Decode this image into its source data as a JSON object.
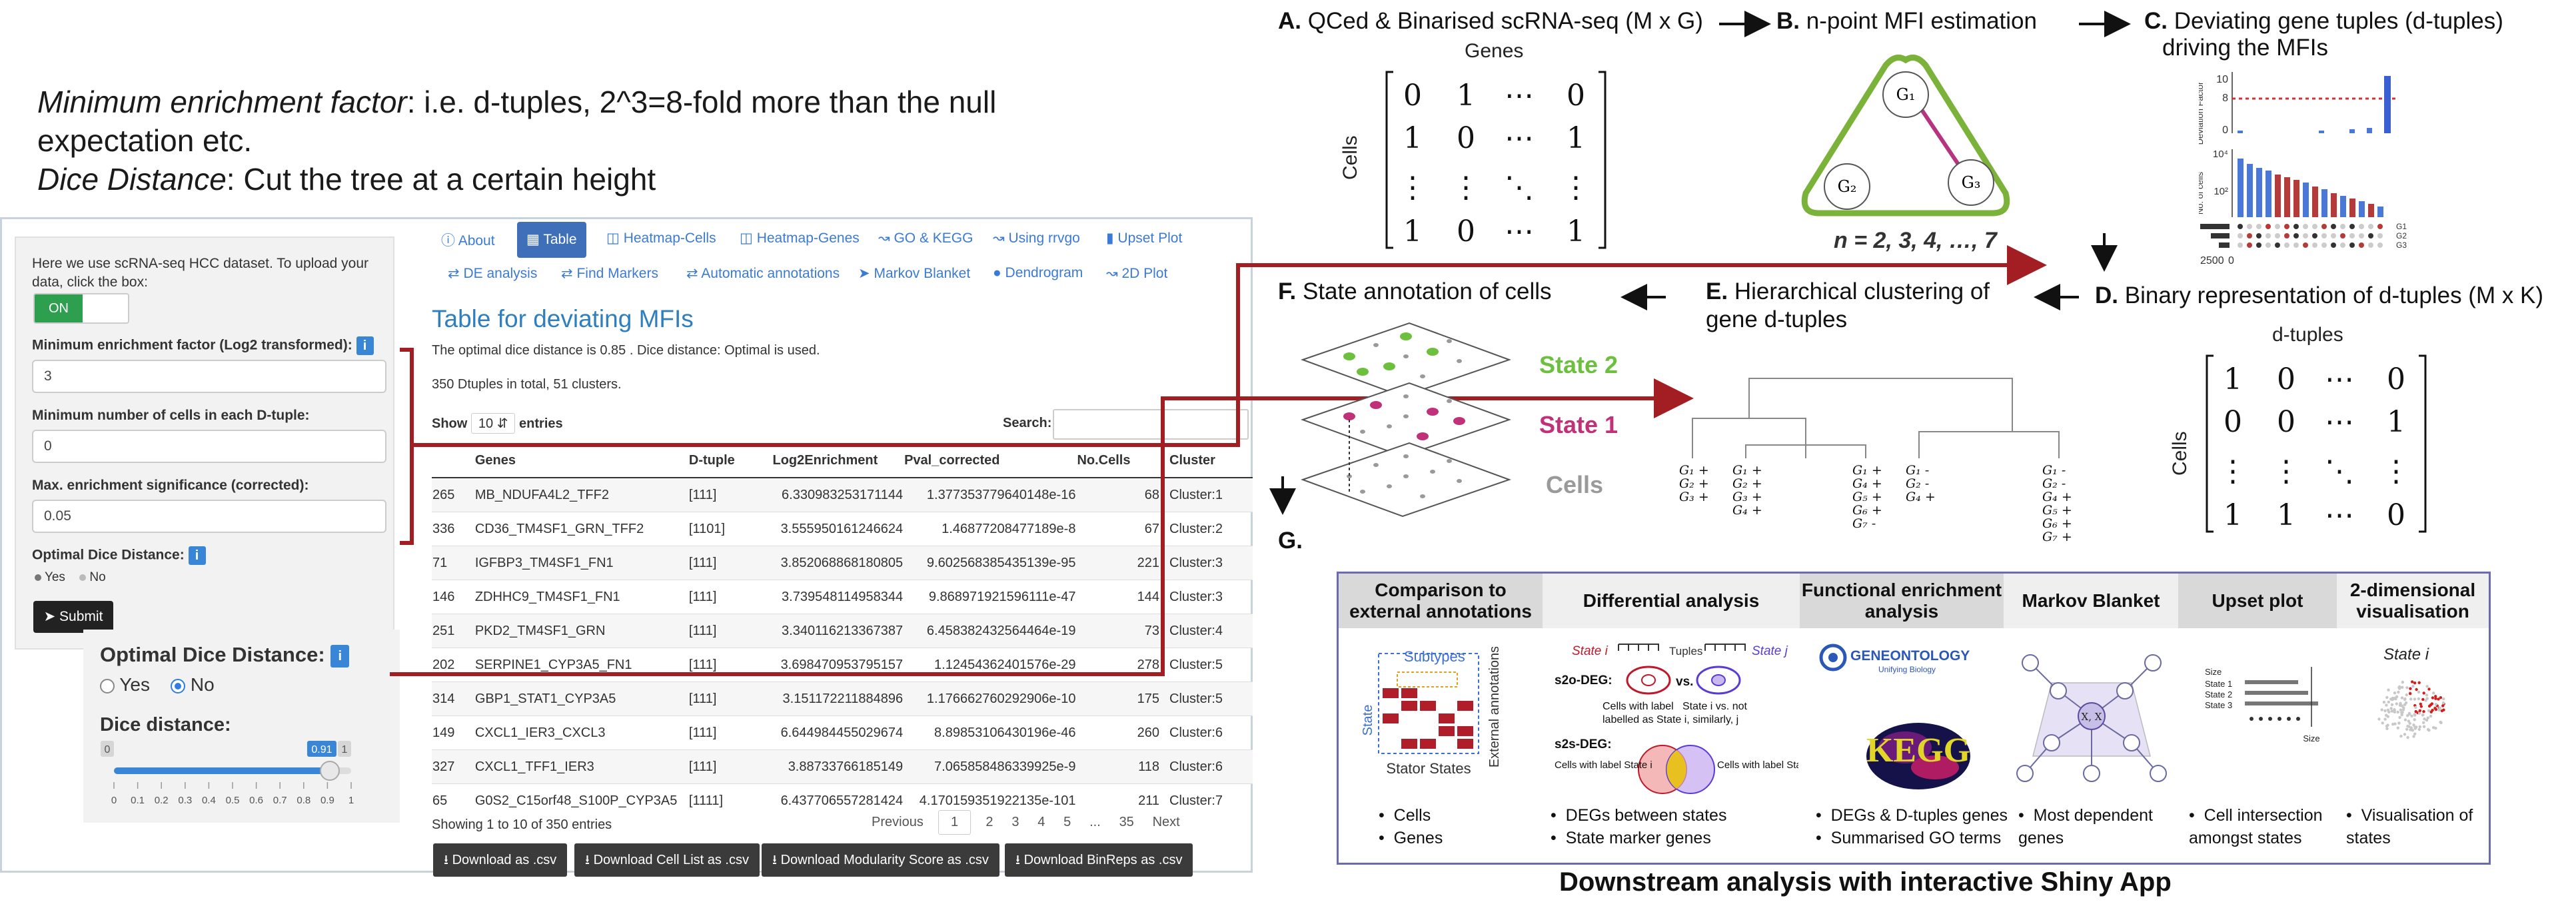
{
  "notes": {
    "line1_term": "Minimum enrichment factor",
    "line1_rest": ": i.e. d-tuples,  2^3=8-fold more than the null",
    "line2": "expectation etc.",
    "line3_term": "Dice Distance",
    "line3_rest": ": Cut the tree at a certain height"
  },
  "app": {
    "sidebar": {
      "intro": "Here we use scRNA-seq HCC dataset. To upload your data, click the box:",
      "toggle_label": "ON",
      "min_enrich_label": "Minimum enrichment factor (Log2 transformed):",
      "min_enrich_value": "3",
      "min_cells_label": "Minimum number of cells in each D-tuple:",
      "min_cells_value": "0",
      "max_sig_label": "Max. enrichment significance (corrected):",
      "max_sig_value": "0.05",
      "dice_label": "Optimal Dice Distance:",
      "yes": "Yes",
      "no": "No",
      "submit": "Submit"
    },
    "dice_overlay": {
      "label": "Optimal Dice Distance:",
      "yes": "Yes",
      "no": "No",
      "dist_label": "Dice distance:",
      "min": "0",
      "max": "1",
      "value": "0.91",
      "value_num": 0.91,
      "ticks": [
        "0",
        "0.1",
        "0.2",
        "0.3",
        "0.4",
        "0.5",
        "0.6",
        "0.7",
        "0.8",
        "0.9",
        "1"
      ]
    },
    "tabs_row1": [
      "About",
      "Table",
      "Heatmap-Cells",
      "Heatmap-Genes",
      "GO & KEGG",
      "Using rrvgo",
      "Upset Plot"
    ],
    "tabs_row2": [
      "DE analysis",
      "Find Markers",
      "Automatic annotations",
      "Markov Blanket",
      "Dendrogram",
      "2D Plot"
    ],
    "table": {
      "title": "Table for deviating MFIs",
      "dice_info": "The optimal dice distance is 0.85 . Dice distance: Optimal is used.",
      "summary": "350 Dtuples in total, 51 clusters.",
      "show": "Show",
      "show_value": "10",
      "entries": "entries",
      "search": "Search:",
      "columns": [
        "",
        "Genes",
        "D-tuple",
        "Log2Enrichment",
        "Pval_corrected",
        "No.Cells",
        "Cluster"
      ],
      "rows": [
        [
          "265",
          "MB_NDUFA4L2_TFF2",
          "[111]",
          "6.330983253171144",
          "1.377353779640148e-16",
          "68",
          "Cluster:1"
        ],
        [
          "336",
          "CD36_TM4SF1_GRN_TFF2",
          "[1101]",
          "3.555950161246624",
          "1.46877208477189e-8",
          "67",
          "Cluster:2"
        ],
        [
          "71",
          "IGFBP3_TM4SF1_FN1",
          "[111]",
          "3.852068868180805",
          "9.602568385435139e-95",
          "221",
          "Cluster:3"
        ],
        [
          "146",
          "ZDHHC9_TM4SF1_FN1",
          "[111]",
          "3.739548114958344",
          "9.868971921596111e-47",
          "144",
          "Cluster:3"
        ],
        [
          "251",
          "PKD2_TM4SF1_GRN",
          "[111]",
          "3.340116213367387",
          "6.458382432564464e-19",
          "73",
          "Cluster:4"
        ],
        [
          "202",
          "SERPINE1_CYP3A5_FN1",
          "[111]",
          "3.698470953795157",
          "1.12454362401576e-29",
          "278",
          "Cluster:5"
        ],
        [
          "314",
          "GBP1_STAT1_CYP3A5",
          "[111]",
          "3.151172211884896",
          "1.176662760292906e-10",
          "175",
          "Cluster:5"
        ],
        [
          "149",
          "CXCL1_IER3_CXCL3",
          "[111]",
          "6.644984455029674",
          "8.89853106430196e-46",
          "260",
          "Cluster:6"
        ],
        [
          "327",
          "CXCL1_TFF1_IER3",
          "[111]",
          "3.88733766185149",
          "7.065858486339925e-9",
          "118",
          "Cluster:6"
        ],
        [
          "65",
          "G0S2_C15orf48_S100P_CYP3A5",
          "[1111]",
          "6.437706557281424",
          "4.170159351922135e-101",
          "211",
          "Cluster:7"
        ]
      ],
      "showing": "Showing 1 to 10 of 350 entries",
      "pager": [
        "Previous",
        "1",
        "2",
        "3",
        "4",
        "5",
        "...",
        "35",
        "Next"
      ],
      "downloads": [
        "Download as .csv",
        "Download Cell List as .csv",
        "Download Modularity Score as .csv",
        "Download BinReps as .csv"
      ]
    }
  },
  "diagram": {
    "A": {
      "letter": "A.",
      "title": "QCed & Binarised scRNA-seq (M x G)",
      "col_label": "Genes",
      "row_label": "Cells",
      "matrix": [
        [
          "0",
          "1",
          "⋯",
          "0"
        ],
        [
          "1",
          "0",
          "⋯",
          "1"
        ],
        [
          "⋮",
          "⋮",
          "⋱",
          "⋮"
        ],
        [
          "1",
          "0",
          "⋯",
          "1"
        ]
      ]
    },
    "B": {
      "letter": "B.",
      "title": "n-point MFI estimation",
      "nodes": [
        "G₁",
        "G₂",
        "G₃"
      ],
      "caption": "n = 2, 3, 4, …, 7"
    },
    "C": {
      "letter": "C.",
      "title_line1": "Deviating gene tuples (d-tuples)",
      "title_line2": "driving the MFIs",
      "y1_label": "Deviation Factor",
      "y1_ticks": [
        "10",
        "8",
        "0"
      ],
      "y2_label": "No. of cells",
      "y2_ticks": [
        "10⁴",
        "10²"
      ],
      "rows": [
        "G1",
        "G2",
        "G3"
      ],
      "axis_bottom": [
        "2500",
        "0"
      ]
    },
    "D": {
      "letter": "D.",
      "title": "Binary representation of d-tuples (M x K)",
      "col_label": "d-tuples",
      "row_label": "Cells",
      "matrix": [
        [
          "1",
          "0",
          "⋯",
          "0"
        ],
        [
          "0",
          "0",
          "⋯",
          "1"
        ],
        [
          "⋮",
          "⋮",
          "⋱",
          "⋮"
        ],
        [
          "1",
          "1",
          "⋯",
          "0"
        ]
      ]
    },
    "E": {
      "letter": "E.",
      "title_line1": "Hierarchical clustering of",
      "title_line2": "gene d-tuples",
      "leaves": [
        [
          "G₁ +",
          "G₂ +",
          "G₃ +"
        ],
        [
          "G₁ +",
          "G₂ +",
          "G₃ +",
          "G₄ +"
        ],
        [
          "G₁ +",
          "G₄ +",
          "G₅ +",
          "G₆ +",
          "G₇ -"
        ],
        [
          "G₁ -",
          "G₂ -",
          "G₄ +"
        ],
        [
          "G₁ -",
          "G₂ -",
          "G₄ +",
          "G₅ +",
          "G₆ +",
          "G₇ +"
        ]
      ]
    },
    "F": {
      "letter": "F.",
      "title": "State annotation of cells",
      "layers": [
        "State 2",
        "State 1",
        "Cells"
      ],
      "colors": {
        "state2": "#6dbf3e",
        "state1": "#c0317a",
        "cells": "#9a9a9a"
      }
    },
    "G": {
      "letter": "G."
    }
  },
  "downstream": {
    "caption": "Downstream analysis with interactive Shiny App",
    "columns": [
      {
        "head": "Comparison to external annotations",
        "items": [
          "Cells",
          "Genes"
        ]
      },
      {
        "head": "Differential analysis",
        "items": [
          "DEGs between states",
          "State marker genes"
        ]
      },
      {
        "head": "Functional enrichment analysis",
        "items": [
          "DEGs & D-tuples genes",
          "Summarised GO terms"
        ]
      },
      {
        "head": "Markov Blanket",
        "items": [
          "Most dependent genes"
        ]
      },
      {
        "head": "Upset plot",
        "items": [
          "Cell intersection amongst states"
        ]
      },
      {
        "head": "2-dimensional visualisation",
        "items": [
          "Visualisation of states"
        ]
      }
    ],
    "col1": {
      "subtypes": "Subtypes",
      "state": "State",
      "stator": "Stator States",
      "external": "External annotations"
    },
    "col2": {
      "state_i": "State i",
      "tuples": "Tuples",
      "state_j": "State j",
      "s2o": "s2o-DEG:",
      "s2o_text1": "Cells with label",
      "s2o_text2": "State i vs. not",
      "s2o_text3": "labelled as State i, similarly, j",
      "s2s": "s2s-DEG:",
      "s2s_left": "Cells with label State i",
      "s2s_right": "Cells with label State j"
    },
    "col3": {
      "go_logo": "GENEONTOLOGY",
      "go_sub": "Unifying Biology",
      "kegg": "KEGG"
    },
    "col4": {
      "center": "X, X"
    },
    "col5": {
      "size": "Size",
      "states": [
        "State 1",
        "State 2",
        "State 3"
      ],
      "size_bottom": "Size"
    },
    "col6": {
      "state_i": "State i"
    }
  },
  "accent_color": "#a31e22"
}
